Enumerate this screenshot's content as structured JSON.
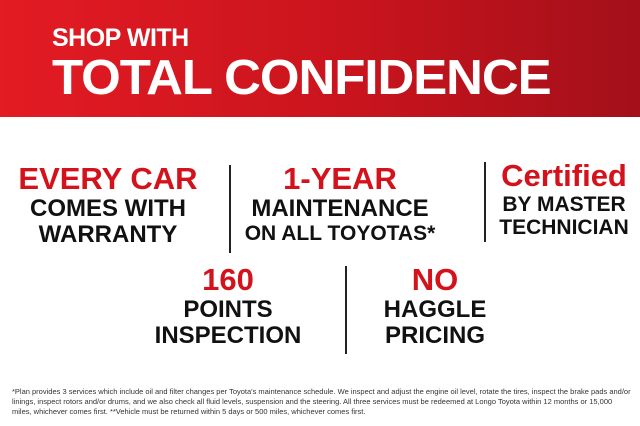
{
  "banner": {
    "subtitle": "SHOP WITH",
    "title": "TOTAL CONFIDENCE",
    "colors": {
      "red": "#e31b23",
      "dark_red": "#a3101a"
    }
  },
  "features": [
    {
      "highlight": "EVERY CAR",
      "lines": [
        "COMES WITH",
        "WARRANTY"
      ]
    },
    {
      "highlight": "1-YEAR",
      "lines": [
        "MAINTENANCE",
        "ON ALL TOYOTAS*"
      ]
    },
    {
      "highlight": "Certified",
      "lines": [
        "BY MASTER",
        "TECHNICIAN"
      ]
    },
    {
      "highlight": "160",
      "lines": [
        "POINTS",
        "INSPECTION"
      ]
    },
    {
      "highlight": "NO",
      "lines": [
        "HAGGLE",
        "PRICING"
      ]
    }
  ],
  "disclaimer": "*Plan provides 3 services which include oil and filter changes per Toyota's maintenance schedule. We inspect and adjust the engine oil level, rotate the tires, inspect the brake pads and/or linings, inspect rotors and/or drums, and we also check all fluid levels, suspension and the steering.  All three services must be redeemed at Longo Toyota within 12 months or 15,000 miles, whichever comes first. **Vehicle must be returned within 5 days or 500 miles, whichever comes first."
}
